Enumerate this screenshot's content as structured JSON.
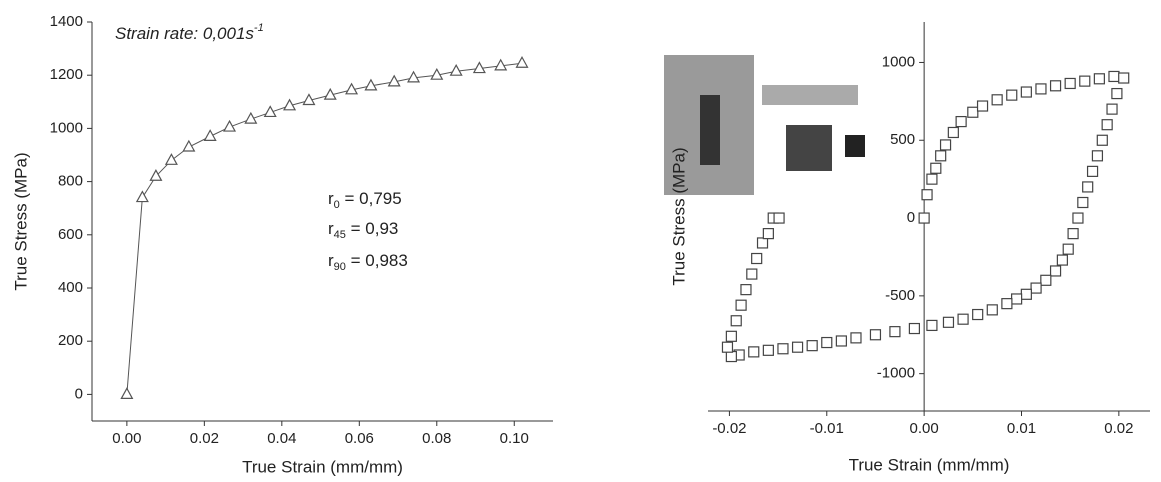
{
  "chart_data": [
    {
      "type": "scatter",
      "line": true,
      "marker": "triangle",
      "color": "#555",
      "x_label": "True Strain (mm/mm)",
      "y_label": "True Stress (MPa)",
      "annotations": [
        {
          "text": "Strain rate: 0,001s",
          "sup": "-1"
        },
        {
          "base": "r",
          "sub": "0",
          "text": " = 0,795"
        },
        {
          "base": "r",
          "sub": "45",
          "text": " = 0,93"
        },
        {
          "base": "r",
          "sub": "90",
          "text": " = 0,983"
        }
      ],
      "series": [
        {
          "x": [
            0,
            0.004,
            0.0075,
            0.0115,
            0.016,
            0.0215,
            0.0265,
            0.032,
            0.037,
            0.042,
            0.047,
            0.0525,
            0.058,
            0.063,
            0.069,
            0.074,
            0.08,
            0.085,
            0.091,
            0.0965,
            0.102
          ],
          "values": [
            0,
            740,
            820,
            880,
            930,
            970,
            1005,
            1035,
            1060,
            1085,
            1105,
            1125,
            1145,
            1160,
            1175,
            1190,
            1200,
            1215,
            1225,
            1235,
            1245
          ]
        }
      ],
      "xlim": [
        -0.009,
        0.11
      ],
      "xticks": [
        {
          "value": 0,
          "label": "0.00"
        },
        {
          "value": 0.02,
          "label": "0.02"
        },
        {
          "value": 0.04,
          "label": "0.04"
        },
        {
          "value": 0.06,
          "label": "0.06"
        },
        {
          "value": 0.08,
          "label": "0.08"
        },
        {
          "value": 0.1,
          "label": "0.10"
        }
      ],
      "ylim": [
        -100,
        1400
      ],
      "yticks": [
        0,
        200,
        400,
        600,
        800,
        1000,
        1200,
        1400
      ],
      "grid": false
    },
    {
      "type": "scatter",
      "line": false,
      "marker": "square",
      "color": "#444",
      "yaxis_cross": 0,
      "x_label": "True Strain (mm/mm)",
      "y_label": "True Stress (MPa)",
      "series": [
        {
          "x": [
            0,
            0.0003,
            0.0008,
            0.0012,
            0.0017,
            0.0022,
            0.003,
            0.0038,
            0.005,
            0.006,
            0.0075,
            0.009,
            0.0105,
            0.012,
            0.0135,
            0.015,
            0.0165,
            0.018,
            0.0195,
            0.0205,
            0.0198,
            0.0193,
            0.0188,
            0.0183,
            0.0178,
            0.0173,
            0.0168,
            0.0163,
            0.0158,
            0.0153,
            0.0148,
            0.0142,
            0.0135,
            0.0125,
            0.0115,
            0.0105,
            0.0095,
            0.0085,
            0.007,
            0.0055,
            0.004,
            0.0025,
            0.0008,
            -0.001,
            -0.003,
            -0.005,
            -0.007,
            -0.0085,
            -0.01,
            -0.0115,
            -0.013,
            -0.0145,
            -0.016,
            -0.0175,
            -0.019,
            -0.0198,
            -0.0202,
            -0.0198,
            -0.0193,
            -0.0188,
            -0.0183,
            -0.0177,
            -0.0172,
            -0.0166,
            -0.016,
            -0.0155,
            -0.0149
          ],
          "values": [
            0,
            150,
            250,
            320,
            400,
            470,
            550,
            620,
            680,
            720,
            760,
            790,
            810,
            830,
            850,
            865,
            880,
            895,
            910,
            900,
            800,
            700,
            600,
            500,
            400,
            300,
            200,
            100,
            0,
            -100,
            -200,
            -270,
            -340,
            -400,
            -450,
            -490,
            -520,
            -550,
            -590,
            -620,
            -650,
            -670,
            -690,
            -710,
            -730,
            -750,
            -770,
            -790,
            -800,
            -820,
            -830,
            -840,
            -850,
            -860,
            -880,
            -890,
            -830,
            -760,
            -660,
            -560,
            -460,
            -360,
            -260,
            -160,
            -100,
            0,
            0
          ]
        }
      ],
      "xlim": [
        -0.0222,
        0.0232
      ],
      "xticks": [
        {
          "value": -0.02,
          "label": "-0.02"
        },
        {
          "value": -0.01,
          "label": "-0.01"
        },
        {
          "value": 0,
          "label": "0.00"
        },
        {
          "value": 0.01,
          "label": "0.01"
        },
        {
          "value": 0.02,
          "label": "0.02"
        }
      ],
      "ylim": [
        -1240,
        1260
      ],
      "yticks": [
        -1000,
        -500,
        0,
        500,
        1000
      ],
      "grid": false
    }
  ]
}
